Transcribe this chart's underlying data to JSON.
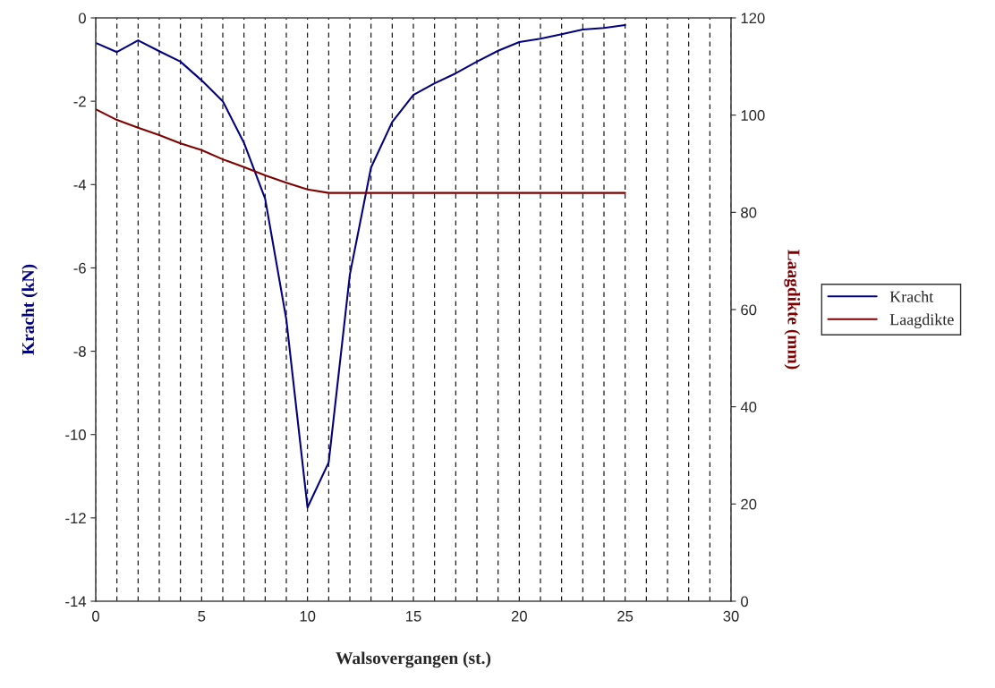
{
  "chart_data": {
    "type": "line",
    "xlabel": "Walsovergangen (st.)",
    "ylabel": "Kracht (kN)",
    "y2label": "Laagdikte (mm)",
    "x": [
      0,
      1,
      2,
      3,
      4,
      5,
      6,
      7,
      8,
      9,
      10,
      11,
      12,
      13,
      14,
      15,
      16,
      17,
      18,
      19,
      20,
      21,
      22,
      23,
      24,
      25
    ],
    "series": [
      {
        "name": "Kracht",
        "color": "#000080",
        "values": [
          -0.6,
          -0.82,
          -0.54,
          -0.8,
          -1.05,
          -1.5,
          -2.0,
          -3.0,
          -4.34,
          -7.24,
          -11.75,
          -10.67,
          -6.16,
          -3.59,
          -2.5,
          -1.85,
          -1.57,
          -1.33,
          -1.05,
          -0.79,
          -0.58,
          -0.5,
          -0.39,
          -0.28,
          -0.24,
          -0.17
        ]
      },
      {
        "name": "Laagdikte",
        "color": "#800000",
        "axis": "y2",
        "values": [
          101.2,
          99.0,
          97.4,
          95.9,
          94.2,
          92.8,
          90.9,
          89.3,
          87.6,
          86.1,
          84.7,
          84,
          84,
          84,
          84,
          84,
          84,
          84,
          84,
          84,
          84,
          84,
          84,
          84,
          84,
          84
        ]
      }
    ],
    "xlim": [
      0,
      30
    ],
    "xticks": [
      0,
      {
        "value": 1,
        "label": null
      },
      {
        "value": 2,
        "label": null
      },
      {
        "value": 3,
        "label": null
      },
      {
        "value": 4,
        "label": null
      },
      5,
      {
        "value": 6,
        "label": null
      },
      {
        "value": 7,
        "label": null
      },
      {
        "value": 8,
        "label": null
      },
      {
        "value": 9,
        "label": null
      },
      10,
      {
        "value": 11,
        "label": null
      },
      {
        "value": 12,
        "label": null
      },
      {
        "value": 13,
        "label": null
      },
      {
        "value": 14,
        "label": null
      },
      15,
      {
        "value": 16,
        "label": null
      },
      {
        "value": 17,
        "label": null
      },
      {
        "value": 18,
        "label": null
      },
      {
        "value": 19,
        "label": null
      },
      20,
      {
        "value": 21,
        "label": null
      },
      {
        "value": 22,
        "label": null
      },
      {
        "value": 23,
        "label": null
      },
      {
        "value": 24,
        "label": null
      },
      25,
      {
        "value": 26,
        "label": null
      },
      {
        "value": 27,
        "label": null
      },
      {
        "value": 28,
        "label": null
      },
      {
        "value": 29,
        "label": null
      },
      30
    ],
    "ylim": [
      -14,
      0
    ],
    "yticks": [
      -14,
      -12,
      -10,
      -8,
      -6,
      -4,
      -2,
      0
    ],
    "y2lim": [
      0,
      120
    ],
    "y2ticks": [
      0,
      20,
      40,
      60,
      80,
      100,
      120
    ],
    "grid": "x",
    "legend": "right",
    "marker": "none",
    "line_style": "solid"
  }
}
